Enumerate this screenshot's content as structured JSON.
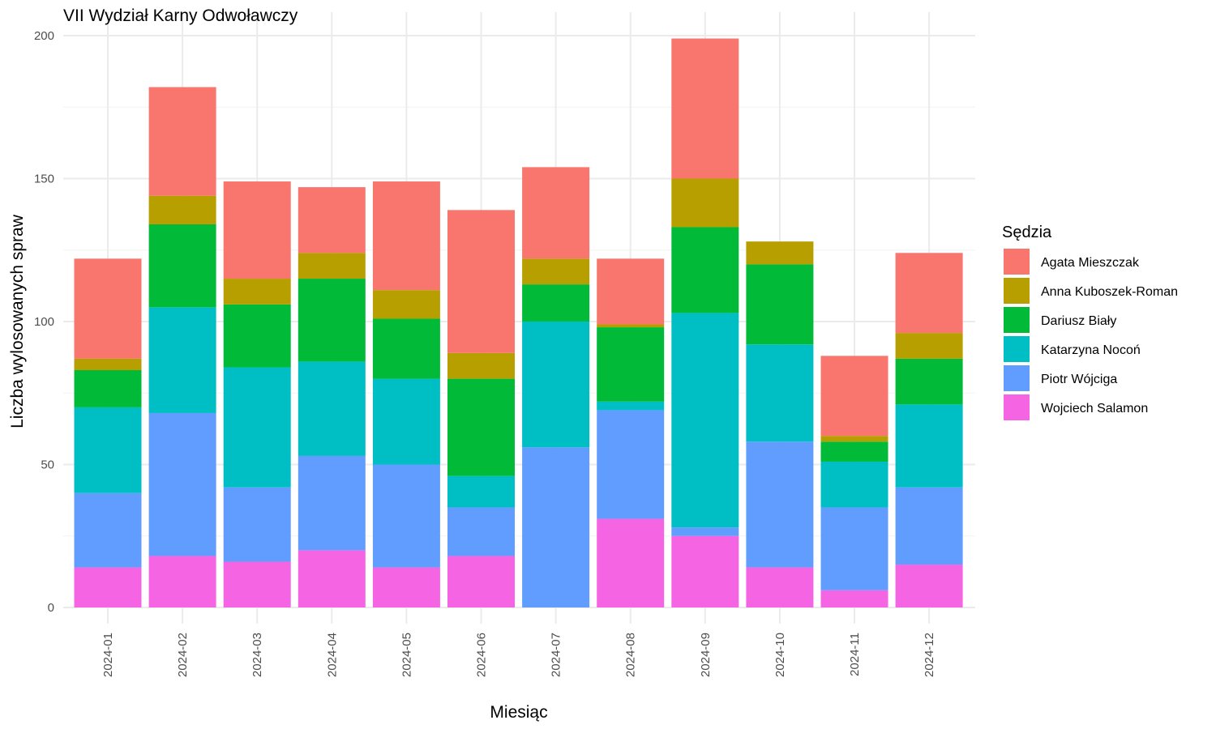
{
  "chart_data": {
    "type": "bar",
    "stacked": true,
    "title": "VII Wydział Karny Odwoławczy",
    "xlabel": "Miesiąc",
    "ylabel": "Liczba wylosowanych spraw",
    "ylim": [
      0,
      200
    ],
    "yticks": [
      "0",
      "50",
      "100",
      "150",
      "200"
    ],
    "grid": true,
    "legend_title": "Sędzia",
    "legend_position": "right",
    "categories": [
      "2024-01",
      "2024-02",
      "2024-03",
      "2024-04",
      "2024-05",
      "2024-06",
      "2024-07",
      "2024-08",
      "2024-09",
      "2024-10",
      "2024-11",
      "2024-12"
    ],
    "series": [
      {
        "name": "Wojciech Salamon",
        "color": "#F564E3",
        "values": [
          14,
          18,
          16,
          20,
          14,
          18,
          0,
          31,
          25,
          14,
          6,
          15
        ]
      },
      {
        "name": "Piotr Wójciga",
        "color": "#619CFF",
        "values": [
          26,
          50,
          26,
          33,
          36,
          17,
          56,
          38,
          3,
          44,
          29,
          27
        ]
      },
      {
        "name": "Katarzyna Nocoń",
        "color": "#00BFC4",
        "values": [
          30,
          37,
          42,
          33,
          30,
          11,
          44,
          3,
          75,
          34,
          16,
          29
        ]
      },
      {
        "name": "Dariusz Biały",
        "color": "#00BA38",
        "values": [
          13,
          29,
          22,
          29,
          21,
          34,
          13,
          26,
          30,
          28,
          7,
          16
        ]
      },
      {
        "name": "Anna Kuboszek-Roman",
        "color": "#B79F00",
        "values": [
          4,
          10,
          9,
          9,
          10,
          9,
          9,
          1,
          17,
          8,
          2,
          9
        ]
      },
      {
        "name": "Agata Mieszczak",
        "color": "#F8766D",
        "values": [
          35,
          38,
          34,
          23,
          38,
          50,
          32,
          23,
          49,
          0,
          28,
          28
        ]
      }
    ],
    "legend_order": [
      "Agata Mieszczak",
      "Anna Kuboszek-Roman",
      "Dariusz Biały",
      "Katarzyna Nocoń",
      "Piotr Wójciga",
      "Wojciech Salamon"
    ]
  }
}
